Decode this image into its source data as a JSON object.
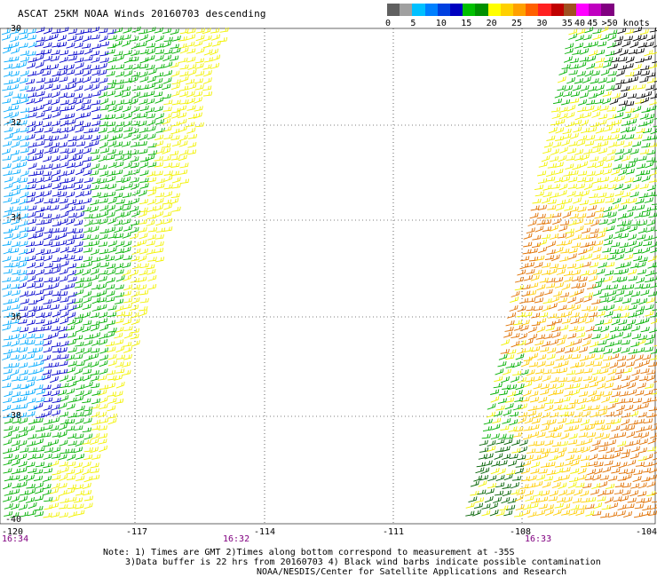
{
  "title": "ASCAT 25KM NOAA Winds 20160703 descending",
  "legend": {
    "bins": [
      {
        "color": "#606060",
        "label": "0"
      },
      {
        "color": "#a0a0a0",
        "label": ""
      },
      {
        "color": "#00c0ff",
        "label": "5"
      },
      {
        "color": "#0080ff",
        "label": ""
      },
      {
        "color": "#0040e0",
        "label": "10"
      },
      {
        "color": "#0000c0",
        "label": ""
      },
      {
        "color": "#00c000",
        "label": "15"
      },
      {
        "color": "#009000",
        "label": ""
      },
      {
        "color": "#ffff00",
        "label": "20"
      },
      {
        "color": "#ffd000",
        "label": ""
      },
      {
        "color": "#ffa000",
        "label": "25"
      },
      {
        "color": "#ff6000",
        "label": ""
      },
      {
        "color": "#ff2020",
        "label": "30"
      },
      {
        "color": "#c00000",
        "label": ""
      },
      {
        "color": "#a05020",
        "label": "35"
      },
      {
        "color": "#ff00ff",
        "label": "40"
      },
      {
        "color": "#c000c0",
        "label": "45"
      },
      {
        "color": "#800080",
        "label": ""
      }
    ],
    "end_label": ">50 knots"
  },
  "lat_labels": [
    "-30",
    "-32",
    "-34",
    "-36",
    "-38",
    "-40"
  ],
  "lon_labels": [
    "-120",
    "-117",
    "-114",
    "-111",
    "-108",
    "-104"
  ],
  "time_labels": [
    "16:34",
    "16:32",
    "16:33"
  ],
  "notes": [
    "Note: 1) Times are GMT 2)Times along bottom correspond to measurement at -35S",
    "3)Data buffer is 22 hrs from 20160703 4) Black wind barbs indicate possible contamination",
    "NOAA/NESDIS/Center for Satellite Applications and Research"
  ],
  "colors": {
    "blue_light": "#00aaff",
    "blue": "#0000cc",
    "green": "#00b000",
    "dark_green": "#006000",
    "yellow": "#f2f200",
    "gold": "#ffcc00",
    "orange": "#e07000",
    "black": "#000000"
  }
}
